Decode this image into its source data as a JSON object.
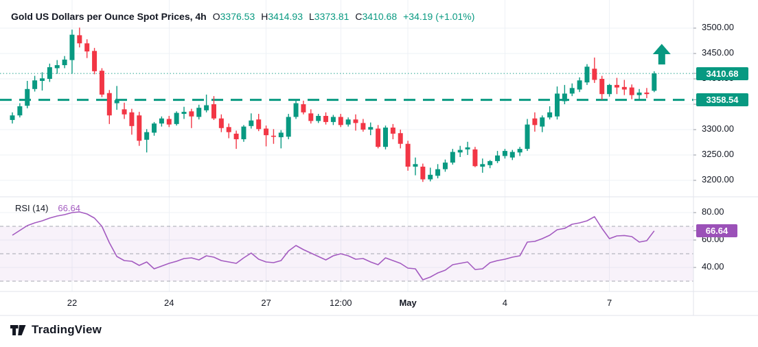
{
  "header": {
    "title": "Gold US Dollars per Ounce Spot Prices, 4h",
    "ohlc": [
      {
        "label": "O",
        "value": "3376.53"
      },
      {
        "label": "H",
        "value": "3414.93"
      },
      {
        "label": "L",
        "value": "3373.81"
      },
      {
        "label": "C",
        "value": "3410.68"
      }
    ],
    "change": "+34.19 (+1.01%)"
  },
  "colors": {
    "up": "#089981",
    "down": "#F23645",
    "price_line": "#089981",
    "rsi_line": "#A35AC0",
    "rsi_badge": "#9B51B8",
    "rsi_band_fill": "rgba(163,90,192,0.08)",
    "guide_dash": "#8a8d98",
    "grid": "#eef1f6",
    "border": "#e0e3eb",
    "text": "#131722"
  },
  "price_axis": {
    "ticks": [
      {
        "text": "3500.00",
        "price": 3500
      },
      {
        "text": "3450.00",
        "price": 3450
      },
      {
        "text": "3400.00",
        "price": 3400
      },
      {
        "text": "3350.00",
        "price": 3350
      },
      {
        "text": "3300.00",
        "price": 3300
      },
      {
        "text": "3250.00",
        "price": 3250
      },
      {
        "text": "3200.00",
        "price": 3200
      }
    ],
    "badges": [
      {
        "text": "3410.68",
        "price": 3410.68
      },
      {
        "text": "3358.54",
        "price": 3358.54
      }
    ]
  },
  "time_axis": {
    "labels": [
      {
        "text": "22",
        "index": 8
      },
      {
        "text": "24",
        "index": 21
      },
      {
        "text": "27",
        "index": 34
      },
      {
        "text": "12:00",
        "index": 44
      },
      {
        "text": "May",
        "index": 53,
        "bold": true
      },
      {
        "text": "4",
        "index": 66
      },
      {
        "text": "7",
        "index": 80
      }
    ]
  },
  "rsi": {
    "title": "RSI (14)",
    "value_label": "66.64",
    "badge": "66.64",
    "axis_ticks": [
      {
        "text": "80.00",
        "value": 80
      },
      {
        "text": "60.00",
        "value": 60
      },
      {
        "text": "40.00",
        "value": 40
      }
    ]
  },
  "logo": {
    "text": "TradingView"
  },
  "chart_data": [
    {
      "pane": "price",
      "type": "candlestick",
      "title": "Gold US Dollars per Ounce Spot Prices",
      "interval": "4h",
      "ylim": [
        3190,
        3505
      ],
      "y_axis_ticks": [
        3500,
        3450,
        3400,
        3350,
        3300,
        3250,
        3200
      ],
      "price_lines": [
        {
          "value": 3410.68,
          "style": "dotted"
        },
        {
          "value": 3358.54,
          "style": "dashed"
        }
      ],
      "marker": {
        "type": "up-arrow",
        "color": "#089981",
        "near_last_candle": true
      },
      "candles": [
        [
          3319,
          3334,
          3312,
          3328
        ],
        [
          3328,
          3352,
          3324,
          3346
        ],
        [
          3347,
          3396,
          3342,
          3380
        ],
        [
          3380,
          3406,
          3375,
          3397
        ],
        [
          3396,
          3413,
          3377,
          3401
        ],
        [
          3400,
          3430,
          3394,
          3423
        ],
        [
          3421,
          3437,
          3410,
          3427
        ],
        [
          3427,
          3445,
          3421,
          3438
        ],
        [
          3437,
          3497,
          3410,
          3487
        ],
        [
          3486,
          3501,
          3462,
          3470
        ],
        [
          3470,
          3478,
          3441,
          3454
        ],
        [
          3455,
          3461,
          3409,
          3415
        ],
        [
          3416,
          3421,
          3364,
          3369
        ],
        [
          3372,
          3378,
          3311,
          3328
        ],
        [
          3352,
          3386,
          3339,
          3358
        ],
        [
          3340,
          3353,
          3321,
          3330
        ],
        [
          3334,
          3341,
          3290,
          3307
        ],
        [
          3328,
          3335,
          3268,
          3278
        ],
        [
          3280,
          3301,
          3255,
          3295
        ],
        [
          3294,
          3315,
          3288,
          3312
        ],
        [
          3312,
          3326,
          3306,
          3322
        ],
        [
          3321,
          3327,
          3305,
          3310
        ],
        [
          3311,
          3336,
          3308,
          3333
        ],
        [
          3331,
          3345,
          3321,
          3335
        ],
        [
          3336,
          3341,
          3303,
          3326
        ],
        [
          3325,
          3349,
          3320,
          3343
        ],
        [
          3338,
          3369,
          3334,
          3348
        ],
        [
          3350,
          3366,
          3319,
          3322
        ],
        [
          3322,
          3330,
          3295,
          3303
        ],
        [
          3305,
          3312,
          3283,
          3295
        ],
        [
          3292,
          3298,
          3262,
          3281
        ],
        [
          3281,
          3309,
          3276,
          3306
        ],
        [
          3307,
          3332,
          3302,
          3318
        ],
        [
          3320,
          3331,
          3297,
          3301
        ],
        [
          3302,
          3308,
          3267,
          3289
        ],
        [
          3288,
          3301,
          3272,
          3286
        ],
        [
          3285,
          3299,
          3263,
          3294
        ],
        [
          3286,
          3331,
          3281,
          3325
        ],
        [
          3325,
          3359,
          3321,
          3352
        ],
        [
          3350,
          3357,
          3330,
          3334
        ],
        [
          3332,
          3340,
          3312,
          3317
        ],
        [
          3317,
          3331,
          3313,
          3327
        ],
        [
          3327,
          3334,
          3310,
          3315
        ],
        [
          3315,
          3329,
          3309,
          3325
        ],
        [
          3325,
          3331,
          3305,
          3309
        ],
        [
          3310,
          3324,
          3306,
          3320
        ],
        [
          3320,
          3330,
          3298,
          3313
        ],
        [
          3313,
          3321,
          3296,
          3300
        ],
        [
          3300,
          3314,
          3289,
          3305
        ],
        [
          3302,
          3309,
          3263,
          3266
        ],
        [
          3266,
          3308,
          3261,
          3304
        ],
        [
          3304,
          3311,
          3281,
          3292
        ],
        [
          3293,
          3300,
          3263,
          3272
        ],
        [
          3272,
          3278,
          3219,
          3227
        ],
        [
          3227,
          3245,
          3210,
          3232
        ],
        [
          3227,
          3233,
          3197,
          3202
        ],
        [
          3202,
          3225,
          3198,
          3211
        ],
        [
          3209,
          3232,
          3204,
          3222
        ],
        [
          3222,
          3241,
          3217,
          3235
        ],
        [
          3235,
          3262,
          3231,
          3256
        ],
        [
          3255,
          3268,
          3246,
          3260
        ],
        [
          3261,
          3276,
          3250,
          3265
        ],
        [
          3261,
          3266,
          3226,
          3228
        ],
        [
          3227,
          3243,
          3215,
          3232
        ],
        [
          3230,
          3240,
          3224,
          3238
        ],
        [
          3238,
          3258,
          3234,
          3249
        ],
        [
          3248,
          3262,
          3243,
          3258
        ],
        [
          3245,
          3260,
          3240,
          3256
        ],
        [
          3255,
          3266,
          3248,
          3262
        ],
        [
          3262,
          3321,
          3258,
          3310
        ],
        [
          3322,
          3334,
          3296,
          3309
        ],
        [
          3306,
          3328,
          3295,
          3324
        ],
        [
          3324,
          3346,
          3320,
          3334
        ],
        [
          3326,
          3385,
          3320,
          3371
        ],
        [
          3356,
          3388,
          3350,
          3371
        ],
        [
          3371,
          3391,
          3366,
          3382
        ],
        [
          3379,
          3403,
          3374,
          3397
        ],
        [
          3393,
          3429,
          3388,
          3424
        ],
        [
          3420,
          3442,
          3392,
          3398
        ],
        [
          3400,
          3406,
          3359,
          3370
        ],
        [
          3370,
          3390,
          3365,
          3388
        ],
        [
          3388,
          3402,
          3370,
          3383
        ],
        [
          3384,
          3398,
          3368,
          3379
        ],
        [
          3383,
          3389,
          3360,
          3368
        ],
        [
          3368,
          3380,
          3358,
          3373
        ],
        [
          3373,
          3382,
          3362,
          3370
        ],
        [
          3376.53,
          3414.93,
          3373.81,
          3410.68
        ]
      ]
    },
    {
      "pane": "indicator",
      "type": "line",
      "name": "RSI (14)",
      "last_value": 66.64,
      "ylim": [
        22,
        91
      ],
      "y_axis_ticks": [
        80,
        60,
        40
      ],
      "guide_levels": [
        70,
        50,
        30
      ],
      "values": [
        63.5,
        67,
        70.5,
        72.5,
        74,
        76,
        77.5,
        78.5,
        80,
        80.5,
        79,
        76,
        70,
        58,
        48,
        45,
        44.5,
        41.5,
        44,
        39,
        41,
        43,
        44.5,
        46.5,
        47,
        45.5,
        48.5,
        47.5,
        45,
        44,
        43,
        47,
        50.5,
        46,
        44,
        43.5,
        45,
        52,
        56,
        53,
        50.5,
        48,
        45.5,
        48.5,
        50,
        48.5,
        46,
        46.5,
        44,
        42,
        47,
        45,
        43,
        39.5,
        39,
        31,
        33,
        36,
        38,
        42,
        43,
        44,
        38.5,
        39,
        43.5,
        45,
        46,
        47.5,
        48.5,
        58.5,
        59,
        61,
        63.5,
        67.5,
        68.5,
        71.5,
        72.5,
        74,
        77,
        68.5,
        61,
        63,
        63.3,
        62.5,
        58.5,
        59.5,
        66.64
      ]
    }
  ]
}
